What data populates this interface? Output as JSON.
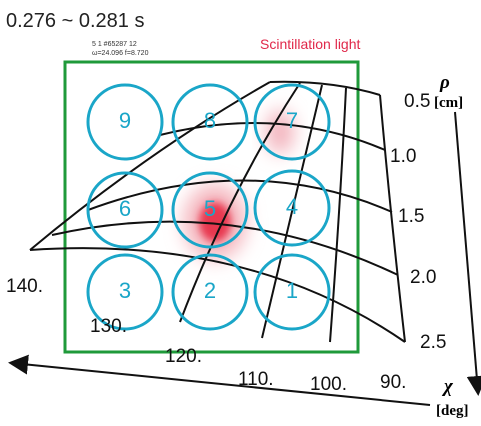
{
  "header": {
    "time_range": "0.276 ~ 0.281 s",
    "info_line1": "5 1 #65287 12",
    "info_line2": "ω=24.096 f=8.720",
    "label": "Scintillation light"
  },
  "channels": [
    "1",
    "2",
    "3",
    "4",
    "5",
    "6",
    "7",
    "8",
    "9"
  ],
  "rho_axis": {
    "symbol": "ρ",
    "unit": "[cm]",
    "ticks": [
      "0.5",
      "1.0",
      "1.5",
      "2.0",
      "2.5"
    ]
  },
  "chi_axis": {
    "symbol": "χ",
    "unit": "[deg]",
    "ticks": [
      "140.",
      "130.",
      "120.",
      "110.",
      "100.",
      "90."
    ]
  }
}
